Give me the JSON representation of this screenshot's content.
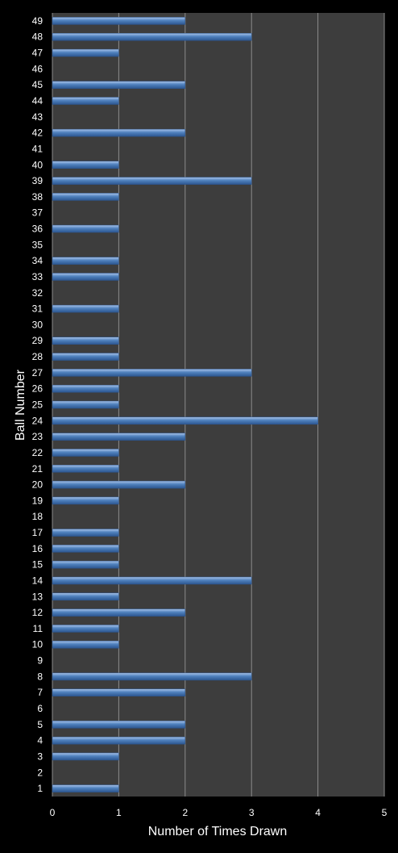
{
  "chart_data": {
    "type": "bar",
    "orientation": "horizontal",
    "xlabel": "Number of Times Drawn",
    "ylabel": "Ball Number",
    "xlim": [
      0,
      5
    ],
    "xticks": [
      "0",
      "1",
      "2",
      "3",
      "4",
      "5"
    ],
    "grid": true,
    "categories": [
      "1",
      "2",
      "3",
      "4",
      "5",
      "6",
      "7",
      "8",
      "9",
      "10",
      "11",
      "12",
      "13",
      "14",
      "15",
      "16",
      "17",
      "18",
      "19",
      "20",
      "21",
      "22",
      "23",
      "24",
      "25",
      "26",
      "27",
      "28",
      "29",
      "30",
      "31",
      "32",
      "33",
      "34",
      "35",
      "36",
      "37",
      "38",
      "39",
      "40",
      "41",
      "42",
      "43",
      "44",
      "45",
      "46",
      "47",
      "48",
      "49"
    ],
    "values": [
      1,
      0,
      1,
      2,
      2,
      0,
      2,
      3,
      0,
      1,
      1,
      2,
      1,
      3,
      1,
      1,
      1,
      0,
      1,
      2,
      1,
      1,
      2,
      4,
      1,
      1,
      3,
      1,
      1,
      0,
      1,
      0,
      1,
      1,
      0,
      1,
      0,
      1,
      3,
      1,
      0,
      2,
      0,
      1,
      2,
      0,
      1,
      3,
      2
    ],
    "colors": {
      "background": "#000000",
      "plot_area": "#3d3d3d",
      "bar": "#4f81bd",
      "gridline": "#8c8c8c",
      "text": "#ffffff"
    }
  }
}
